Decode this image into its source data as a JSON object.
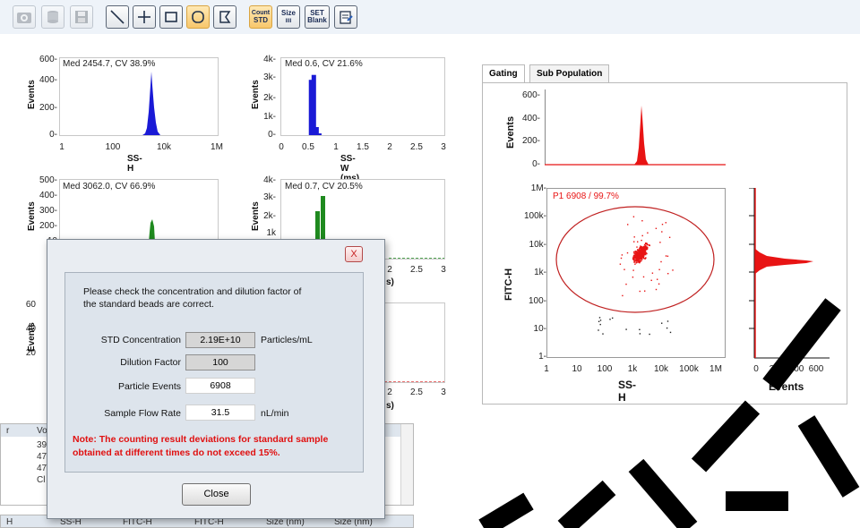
{
  "toolbar": {
    "buttons": [
      "camera-icon",
      "database-icon",
      "save-icon",
      "line-tool-icon",
      "cross-tool-icon",
      "rectangle-tool-icon",
      "ellipse-tool-icon",
      "polygon-tool-icon",
      "count-std-icon",
      "size-icon",
      "set-blank-icon",
      "report-icon"
    ],
    "count_std": [
      "Count",
      "STD"
    ],
    "size": [
      "Size",
      "ııı"
    ],
    "set_blank": [
      "SET",
      "Blank"
    ]
  },
  "plots": {
    "ssh1": {
      "annotation": "Med 2454.7, CV 38.9%",
      "ylabel": "Events",
      "xlabel": "SS-H",
      "yticks": [
        "600-",
        "400-",
        "200-",
        "0-"
      ],
      "xticks": [
        "1",
        "100",
        "10k",
        "1M"
      ],
      "color": "#1a1ad6",
      "ymax": 600,
      "peak": 480
    },
    "ssw1": {
      "annotation": "Med 0.6, CV 21.6%",
      "ylabel": "Events",
      "xlabel": "SS-W (ms)",
      "yticks": [
        "4k-",
        "3k-",
        "2k-",
        "1k-",
        "0-"
      ],
      "xticks": [
        "0",
        "0.5",
        "1",
        "1.5",
        "2",
        "2.5",
        "3"
      ],
      "color": "#1a1ad6",
      "ymax": 4000,
      "bars": [
        {
          "x": 0.55,
          "v": 2900
        },
        {
          "x": 0.6,
          "v": 3150
        },
        {
          "x": 0.65,
          "v": 500
        },
        {
          "x": 0.7,
          "v": 180
        },
        {
          "x": 0.75,
          "v": 60
        }
      ]
    },
    "ssh2": {
      "annotation": "Med 3062.0, CV 66.9%",
      "ylabel": "Events",
      "yticks": [
        "500-",
        "400-",
        "300-",
        "200-",
        "10"
      ],
      "color": "#1f8a1f"
    },
    "ssw2": {
      "annotation": "Med 0.7, CV 20.5%",
      "ylabel": "Events",
      "yticks": [
        "4k-",
        "3k-",
        "2k-",
        "1k"
      ],
      "xticks": [
        "2",
        "2.5",
        "3"
      ],
      "xlabel_tail": "s)",
      "color": "#1f8a1f"
    },
    "ssh3": {
      "ylabel": "Events",
      "yticks": [
        "60",
        "40",
        "20"
      ]
    },
    "ssw3": {
      "xticks": [
        "2",
        "2.5",
        "3"
      ],
      "xlabel_tail": "s)"
    }
  },
  "right": {
    "tabs": [
      "Gating",
      "Sub Population"
    ],
    "top_hist": {
      "ylabel": "Events",
      "yticks": [
        "600-",
        "400-",
        "200-",
        "0-"
      ],
      "color": "#e81414"
    },
    "scatter": {
      "ylabel": "FITC-H",
      "xlabel": "SS-H",
      "yticks": [
        "1M-",
        "100k-",
        "10k-",
        "1k-",
        "100-",
        "10-",
        "1-"
      ],
      "xticks": [
        "1",
        "10",
        "100",
        "1k",
        "10k",
        "100k",
        "1M"
      ],
      "gate_label": "P1  6908 / 99.7%",
      "color": "#e81414"
    },
    "side_hist": {
      "xlabel": "Events",
      "xticks": [
        "0",
        "200",
        "400",
        "600"
      ],
      "color": "#e81414"
    }
  },
  "grid": {
    "top_headers": [
      "r",
      "Vo"
    ],
    "top_rows": [
      "39",
      "47",
      "47",
      "Cl"
    ],
    "bottom_headers": [
      "H",
      "SS-H",
      "FITC-H",
      "FITC-H",
      "Size (nm)",
      "Size (nm)"
    ]
  },
  "dialog": {
    "close_x": "X",
    "message_line1": "Please check the concentration and dilution factor of",
    "message_line2": "the standard beads are correct.",
    "fields": [
      {
        "label": "STD Concentration",
        "value": "2.19E+10",
        "unit": "Particles/mL"
      },
      {
        "label": "Dilution Factor",
        "value": "100",
        "unit": ""
      },
      {
        "label": "Particle Events",
        "value": "6908",
        "unit": ""
      },
      {
        "label": "Sample Flow Rate",
        "value": "31.5",
        "unit": "nL/min"
      }
    ],
    "note_line1": "Note: The counting result deviations for standard sample",
    "note_line2": "obtained at different times do not exceed 15%.",
    "close_button": "Close"
  }
}
